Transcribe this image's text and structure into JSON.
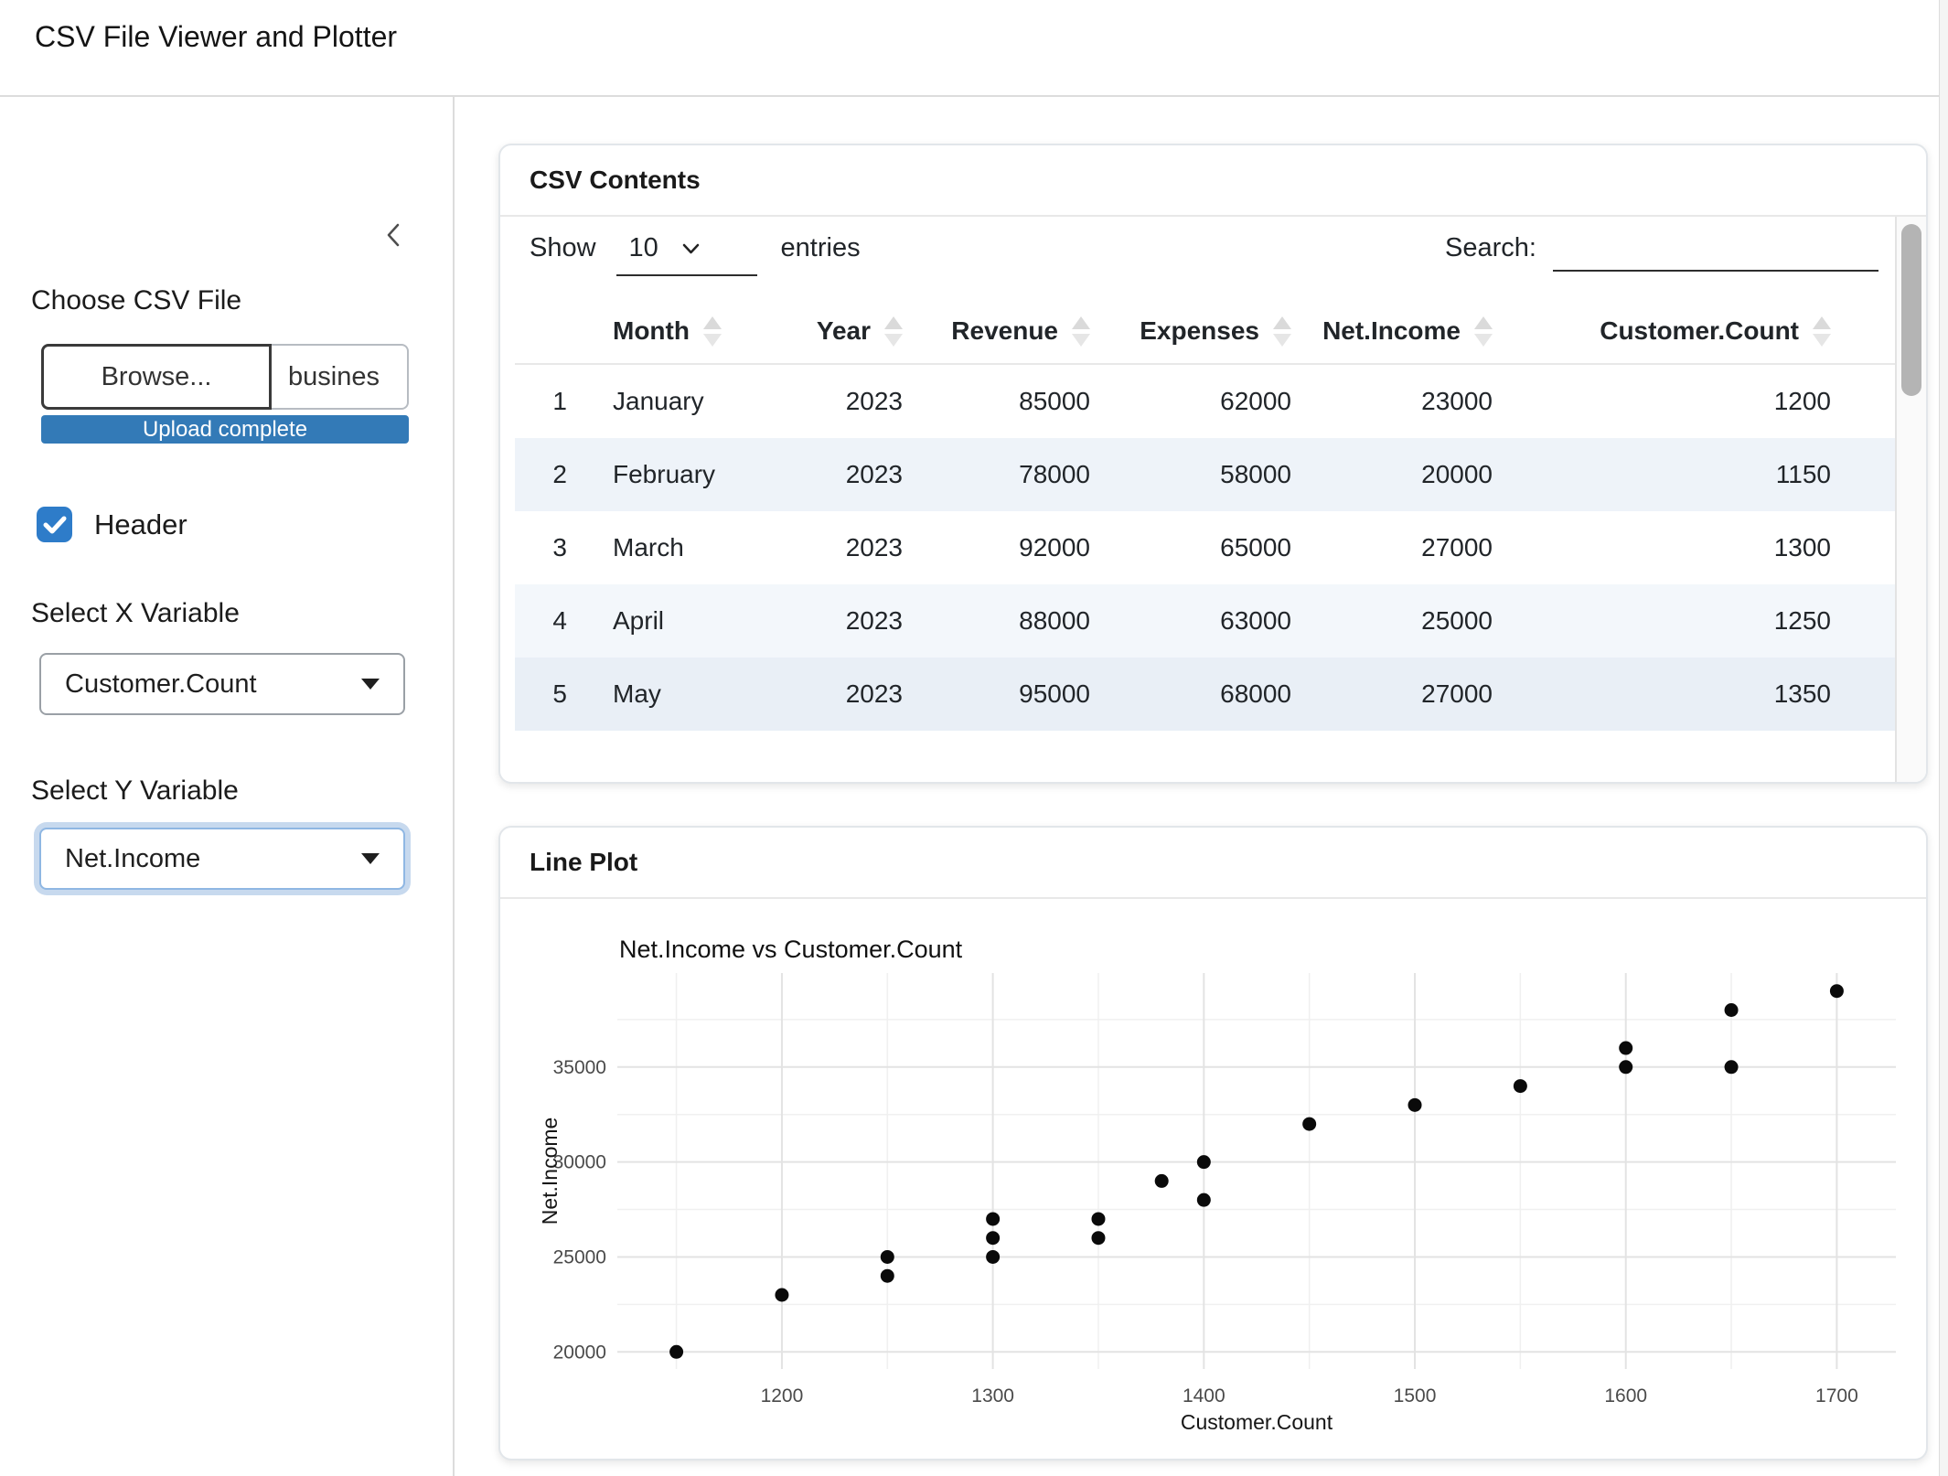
{
  "app": {
    "title": "CSV File Viewer and Plotter"
  },
  "sidebar": {
    "collapse_icon": "chevron-left",
    "file_input": {
      "label": "Choose CSV File",
      "browse_label": "Browse...",
      "filename": "busines",
      "progress_text": "Upload complete"
    },
    "header_checkbox": {
      "label": "Header",
      "checked": true
    },
    "x_select": {
      "label": "Select X Variable",
      "value": "Customer.Count"
    },
    "y_select": {
      "label": "Select Y Variable",
      "value": "Net.Income"
    }
  },
  "csv_card": {
    "title": "CSV Contents",
    "length_control": {
      "show_label": "Show",
      "value": "10",
      "entries_label": "entries"
    },
    "search": {
      "label": "Search:",
      "value": "",
      "placeholder": ""
    },
    "table": {
      "columns": [
        "",
        "Month",
        "Year",
        "Revenue",
        "Expenses",
        "Net.Income",
        "Customer.Count"
      ],
      "rows": [
        [
          "1",
          "January",
          "2023",
          "85000",
          "62000",
          "23000",
          "1200"
        ],
        [
          "2",
          "February",
          "2023",
          "78000",
          "58000",
          "20000",
          "1150"
        ],
        [
          "3",
          "March",
          "2023",
          "92000",
          "65000",
          "27000",
          "1300"
        ],
        [
          "4",
          "April",
          "2023",
          "88000",
          "63000",
          "25000",
          "1250"
        ],
        [
          "5",
          "May",
          "2023",
          "95000",
          "68000",
          "27000",
          "1350"
        ]
      ]
    }
  },
  "plot_card": {
    "title": "Line Plot"
  },
  "chart_data": {
    "type": "scatter",
    "title": "Net.Income vs Customer.Count",
    "xlabel": "Customer.Count",
    "ylabel": "Net.Income",
    "points": [
      [
        1150,
        20000
      ],
      [
        1200,
        23000
      ],
      [
        1250,
        24000
      ],
      [
        1250,
        25000
      ],
      [
        1300,
        25000
      ],
      [
        1300,
        26000
      ],
      [
        1300,
        27000
      ],
      [
        1350,
        26000
      ],
      [
        1350,
        27000
      ],
      [
        1380,
        29000
      ],
      [
        1400,
        28000
      ],
      [
        1400,
        30000
      ],
      [
        1450,
        32000
      ],
      [
        1500,
        33000
      ],
      [
        1550,
        34000
      ],
      [
        1600,
        35000
      ],
      [
        1600,
        36000
      ],
      [
        1650,
        35000
      ],
      [
        1650,
        38000
      ],
      [
        1700,
        39000
      ]
    ],
    "xlim": [
      1122,
      1728
    ],
    "ylim": [
      19100,
      39950
    ],
    "x_ticks": [
      1200,
      1300,
      1400,
      1500,
      1600,
      1700
    ],
    "x_minor_ticks": [
      1150,
      1250,
      1350,
      1450,
      1550,
      1650
    ],
    "y_ticks": [
      20000,
      25000,
      30000,
      35000
    ],
    "y_minor_ticks": [
      22500,
      27500,
      32500,
      37500
    ],
    "grid": "on",
    "legend": "none",
    "point_color": "#0a0a0a"
  },
  "colors": {
    "accent_blue": "#337ab7",
    "checkbox_blue": "#2e7cc9",
    "focus_ring": "#8fb7e3",
    "stripe_light": "#eef3f9",
    "gridline": "#e3e3e3",
    "point": "#0a0a0a"
  }
}
